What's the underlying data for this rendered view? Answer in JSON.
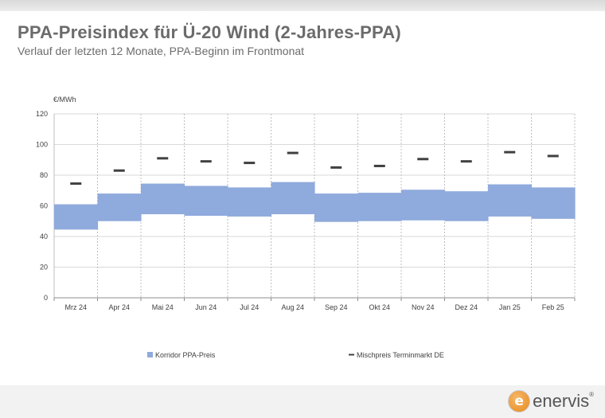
{
  "title": "PPA-Preisindex für Ü-20 Wind (2-Jahres-PPA)",
  "subtitle": "Verlauf der letzten 12 Monate, PPA-Beginn im Frontmonat",
  "logo": {
    "text": "enervis",
    "mark": "e",
    "registered": "®"
  },
  "colors": {
    "corridor": "#8faadc",
    "marker": "#404040",
    "grid": "#d9d9d9",
    "title": "#6b6b6b"
  },
  "chart_data": {
    "type": "bar",
    "ylabel": "€/MWh",
    "ylim": [
      0,
      120
    ],
    "yticks": [
      0,
      20,
      40,
      60,
      80,
      100,
      120
    ],
    "grid": true,
    "legend_position": "bottom",
    "categories": [
      "Mrz 24",
      "Apr 24",
      "Mai 24",
      "Jun 24",
      "Jul 24",
      "Aug 24",
      "Sep 24",
      "Okt 24",
      "Nov 24",
      "Dez 24",
      "Jan 25",
      "Feb 25"
    ],
    "series": [
      {
        "name": "Korridor PPA-Preis",
        "kind": "range",
        "low": [
          44.5,
          50,
          54.5,
          53.5,
          53,
          54.5,
          49.5,
          50,
          50.5,
          50,
          53,
          51.5
        ],
        "high": [
          61,
          68,
          74.5,
          73,
          72,
          75.5,
          68,
          68.5,
          70.5,
          69.5,
          74,
          72
        ]
      },
      {
        "name": "Mischpreis Terminmarkt DE",
        "kind": "marker",
        "values": [
          74.5,
          83,
          91,
          89,
          88,
          94.5,
          85,
          86,
          90.5,
          89,
          95,
          92.5
        ]
      }
    ]
  }
}
